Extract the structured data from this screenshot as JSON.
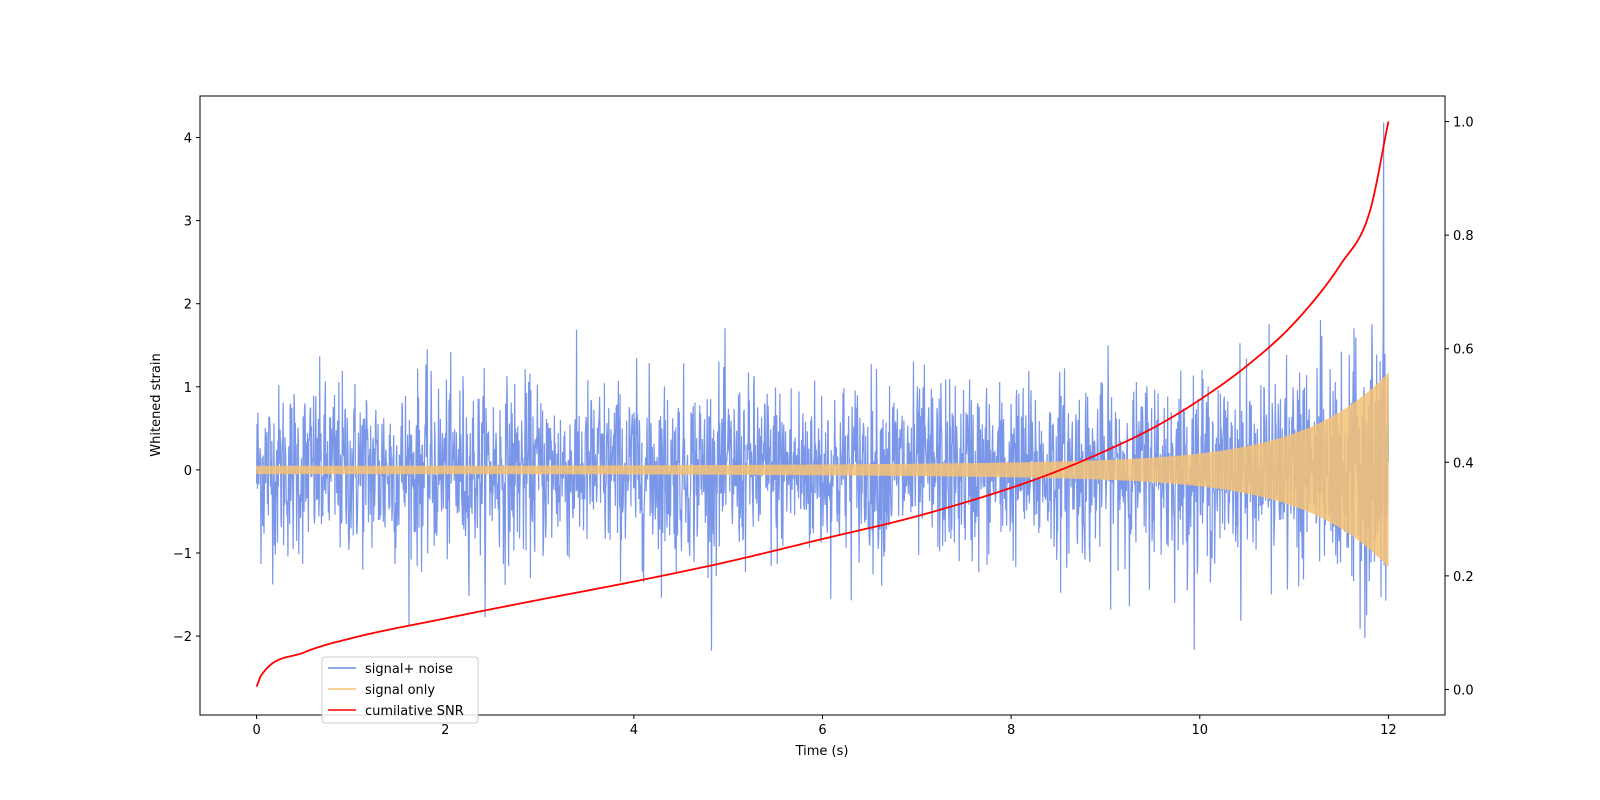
{
  "chart_data": {
    "type": "line",
    "title": "",
    "xlabel": "Time (s)",
    "ylabel": "Whitened strain",
    "y2label": "",
    "xlim": [
      -0.6,
      12.6
    ],
    "ylim": [
      -2.95,
      4.5
    ],
    "y2lim": [
      -0.045,
      1.045
    ],
    "x_ticks": [
      0,
      2,
      4,
      6,
      8,
      10,
      12
    ],
    "y_ticks": [
      -2,
      -1,
      0,
      1,
      2,
      3,
      4
    ],
    "y2_ticks": [
      0.0,
      0.2,
      0.4,
      0.6,
      0.8,
      1.0
    ],
    "grid": false,
    "legend_position": "lower-left",
    "series": [
      {
        "name": "signal+ noise",
        "color": "#6a8be6",
        "axis": "left",
        "description": "noisy whitened strain, roughly within -2.6 to 2.6 with a peak near 4.2 at t≈11.95",
        "x_range": [
          0,
          12
        ],
        "noise_std": 0.85,
        "peak": {
          "x": 11.95,
          "y": 4.18
        }
      },
      {
        "name": "signal only",
        "color": "#f5c276",
        "axis": "left",
        "description": "chirp oscillation whose envelope grows from about 0.05 to 1.05 at t=12",
        "x_range": [
          0,
          12
        ],
        "envelope_start": 0.05,
        "envelope_end": 1.05
      },
      {
        "name": "cumilative SNR",
        "color": "#ff0000",
        "axis": "right",
        "x": [
          0,
          0.05,
          0.5,
          1,
          2,
          3,
          4,
          5,
          6,
          7,
          8,
          8.5,
          9,
          9.5,
          10,
          10.5,
          11,
          11.5,
          11.8,
          12
        ],
        "y": [
          0.005,
          0.025,
          0.065,
          0.09,
          0.125,
          0.158,
          0.19,
          0.225,
          0.265,
          0.305,
          0.355,
          0.385,
          0.42,
          0.46,
          0.51,
          0.57,
          0.645,
          0.75,
          0.84,
          1.0
        ]
      }
    ]
  }
}
